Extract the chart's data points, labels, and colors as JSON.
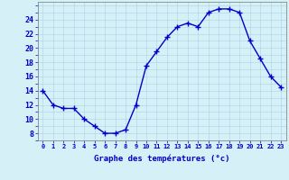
{
  "hours": [
    0,
    1,
    2,
    3,
    4,
    5,
    6,
    7,
    8,
    9,
    10,
    11,
    12,
    13,
    14,
    15,
    16,
    17,
    18,
    19,
    20,
    21,
    22,
    23
  ],
  "temps": [
    14,
    12,
    11.5,
    11.5,
    10,
    9,
    8,
    8,
    8.5,
    12,
    17.5,
    19.5,
    21.5,
    23,
    23.5,
    23,
    25,
    25.5,
    25.5,
    25,
    21,
    18.5,
    16,
    14.5
  ],
  "line_color": "#0000cc",
  "marker": "+",
  "marker_size": 4,
  "marker_color": "#0000cc",
  "bg_color": "#d6f0f8",
  "grid_color": "#b0d8e8",
  "xlabel": "Graphe des températures (°c)",
  "xlabel_color": "#0000cc",
  "tick_color": "#0000cc",
  "ylim": [
    7,
    26.5
  ],
  "yticks": [
    8,
    10,
    12,
    14,
    16,
    18,
    20,
    22,
    24
  ],
  "xlim": [
    -0.5,
    23.5
  ],
  "xticks": [
    0,
    1,
    2,
    3,
    4,
    5,
    6,
    7,
    8,
    9,
    10,
    11,
    12,
    13,
    14,
    15,
    16,
    17,
    18,
    19,
    20,
    21,
    22,
    23
  ],
  "xtick_labels": [
    "0",
    "1",
    "2",
    "3",
    "4",
    "5",
    "6",
    "7",
    "8",
    "9",
    "10",
    "11",
    "12",
    "13",
    "14",
    "15",
    "16",
    "17",
    "18",
    "19",
    "20",
    "21",
    "22",
    "23"
  ]
}
